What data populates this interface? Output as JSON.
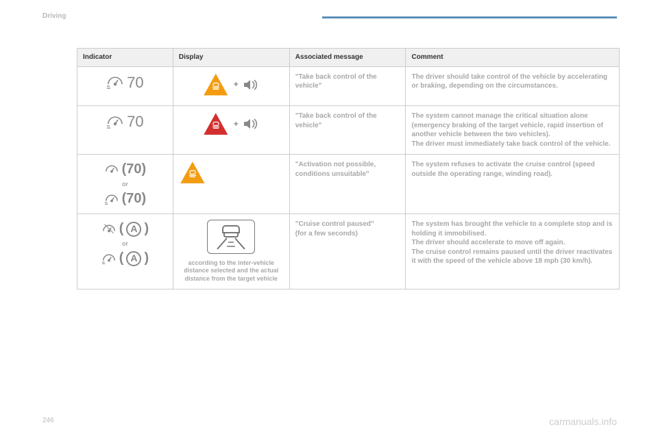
{
  "section_label": "Driving",
  "page_number": "246",
  "watermark": "carmanuals.info",
  "table": {
    "headers": {
      "indicator": "Indicator",
      "display": "Display",
      "message": "Associated message",
      "comment": "Comment"
    },
    "rows": [
      {
        "speed": "70",
        "display_plus": "+",
        "message": "\"Take back control of the vehicle\"",
        "comment": "The driver should take control of the vehicle by accelerating or braking, depending on the circumstances."
      },
      {
        "speed": "70",
        "display_plus": "+",
        "message": "\"Take back control of the vehicle\"",
        "comment": "The system cannot manage the critical situation alone (emergency braking of the target vehicle, rapid insertion of another vehicle between the two vehicles).\nThe driver must immediately take back control of the vehicle."
      },
      {
        "speed_a": "(70)",
        "or": "or",
        "speed_b": "(70)",
        "message": "\"Activation not possible, conditions unsuitable\"",
        "comment": "The system refuses to activate the cruise control (speed outside the operating range, winding road)."
      },
      {
        "a_label": "A",
        "or": "or",
        "display_caption": "according to the inter-vehicle distance selected and the actual distance from the target vehicle",
        "message": "\"Cruise control paused\"\n(for a few seconds)",
        "comment": "The system has brought the vehicle to a complete stop and is holding it immobilised.\nThe driver should accelerate to move off again.\nThe cruise control remains paused until the driver reactivates it with the speed of the vehicle above 18 mph (30 km/h)."
      }
    ]
  },
  "colors": {
    "orange": "#f39c12",
    "red": "#d32f2f",
    "grey_icon": "#888888",
    "grey_text": "#a8a8a8",
    "header_rule": "#5a8fb5"
  }
}
